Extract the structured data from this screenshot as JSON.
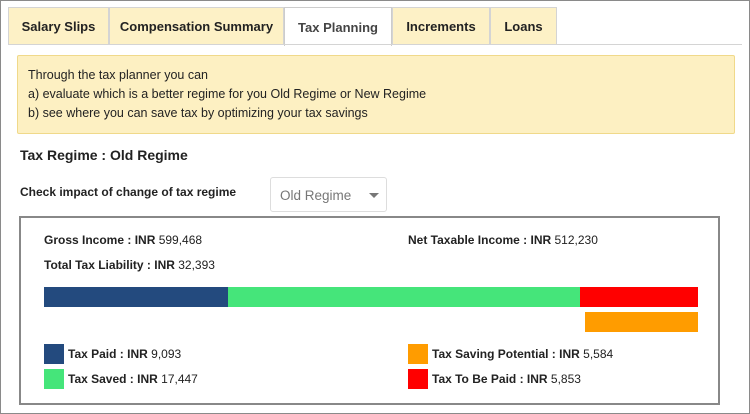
{
  "tabs": [
    {
      "label": "Salary Slips",
      "active": false
    },
    {
      "label": "Compensation Summary",
      "active": false
    },
    {
      "label": "Tax Planning",
      "active": true
    },
    {
      "label": "Increments",
      "active": false
    },
    {
      "label": "Loans",
      "active": false
    }
  ],
  "info": {
    "line1": "Through the tax planner you can",
    "line2": "a) evaluate which is a better regime for you Old Regime or New Regime",
    "line3": "b) see where you can save tax by optimizing your tax savings"
  },
  "regime": {
    "title": "Tax Regime : Old Regime",
    "check_label": "Check impact of change of tax regime",
    "selected": "Old Regime"
  },
  "summary": {
    "gross_label": "Gross Income : INR",
    "gross_value": "599,468",
    "net_label": "Net Taxable Income : INR",
    "net_value": "512,230",
    "liability_label": "Total Tax Liability : INR",
    "liability_value": "32,393"
  },
  "breakdown": {
    "paid": {
      "label": "Tax Paid : INR",
      "value": "9,093",
      "amount": 9093,
      "color": "#234a7e"
    },
    "saved": {
      "label": "Tax Saved : INR",
      "value": "17,447",
      "amount": 17447,
      "color": "#45e57a"
    },
    "to_be_paid": {
      "label": "Tax To Be Paid : INR",
      "value": "5,853",
      "amount": 5853,
      "color": "#ff0000"
    },
    "potential": {
      "label": "Tax Saving Potential : INR",
      "value": "5,584",
      "amount": 5584,
      "color": "#ff9c00"
    }
  }
}
